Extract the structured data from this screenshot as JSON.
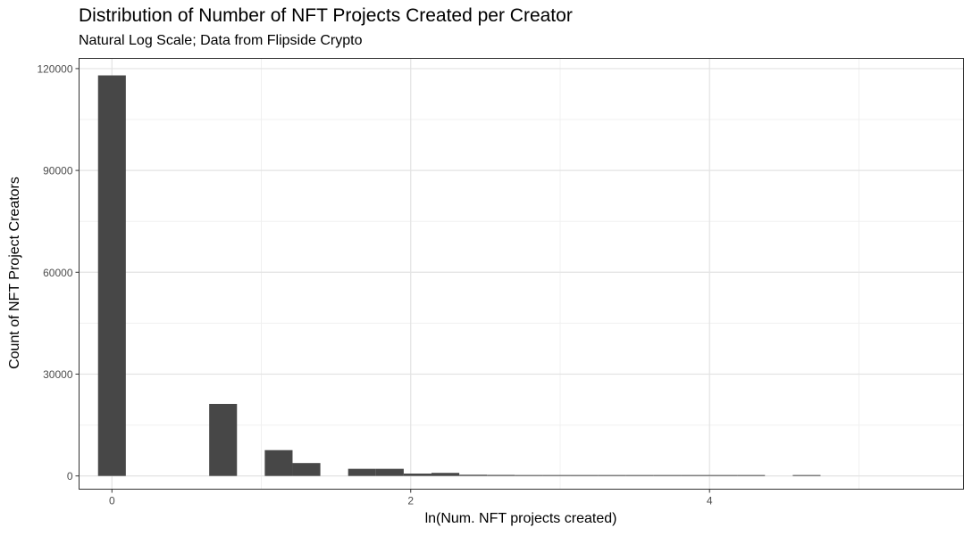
{
  "chart_data": {
    "type": "bar",
    "title": "Distribution of Number of NFT Projects Created per Creator",
    "subtitle": "Natural Log Scale; Data from Flipside Crypto",
    "xlabel": "ln(Num. NFT projects created)",
    "ylabel": "Count of NFT Project Creators",
    "xlim": [
      -0.22,
      5.7
    ],
    "ylim": [
      -3900,
      123000
    ],
    "x_ticks": [
      0,
      2,
      4
    ],
    "y_ticks": [
      0,
      30000,
      60000,
      90000,
      120000
    ],
    "x_tick_labels": [
      "0",
      "2",
      "4"
    ],
    "y_tick_labels": [
      "0",
      "30000",
      "60000",
      "90000",
      "120000"
    ],
    "bin_width": 0.186,
    "bins": [
      {
        "x": 0.0,
        "count": 118000
      },
      {
        "x": 0.744,
        "count": 21200
      },
      {
        "x": 1.116,
        "count": 7600
      },
      {
        "x": 1.302,
        "count": 3800
      },
      {
        "x": 1.674,
        "count": 2100
      },
      {
        "x": 1.86,
        "count": 2100
      },
      {
        "x": 2.046,
        "count": 700
      },
      {
        "x": 2.232,
        "count": 900
      },
      {
        "x": 2.418,
        "count": 350
      },
      {
        "x": 2.604,
        "count": 300
      },
      {
        "x": 2.79,
        "count": 150
      },
      {
        "x": 2.976,
        "count": 120
      },
      {
        "x": 3.162,
        "count": 90
      },
      {
        "x": 3.348,
        "count": 70
      },
      {
        "x": 3.534,
        "count": 60
      },
      {
        "x": 3.72,
        "count": 50
      },
      {
        "x": 3.906,
        "count": 40
      },
      {
        "x": 4.092,
        "count": 30
      },
      {
        "x": 4.278,
        "count": 20
      },
      {
        "x": 4.65,
        "count": 20
      }
    ],
    "grid": true,
    "bar_color": "#474747"
  }
}
